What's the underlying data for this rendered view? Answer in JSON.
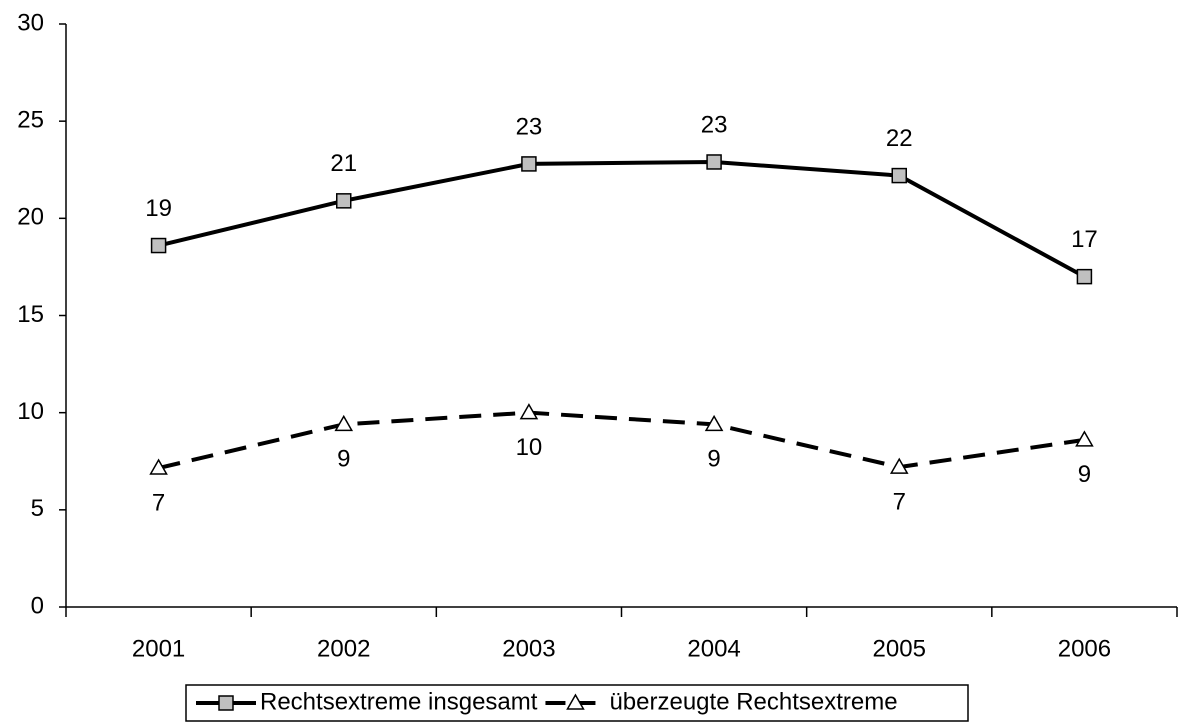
{
  "chart_data": {
    "type": "line",
    "categories": [
      "2001",
      "2002",
      "2003",
      "2004",
      "2005",
      "2006"
    ],
    "series": [
      {
        "name": "Rechtsextreme insgesamt",
        "color": "#000000",
        "line_style": "solid",
        "marker": "square",
        "marker_color": "#c0c0c0",
        "values": [
          18.6,
          20.9,
          22.8,
          22.9,
          22.2,
          17.0
        ],
        "value_labels": [
          "19",
          "21",
          "23",
          "23",
          "22",
          "17"
        ]
      },
      {
        "name": "überzeugte Rechtsextreme",
        "color": "#000000",
        "line_style": "dashed",
        "marker": "triangle",
        "marker_color": "#ffffff",
        "values": [
          7.15,
          9.4,
          10.0,
          9.4,
          7.2,
          8.6
        ],
        "value_labels": [
          "7",
          "9",
          "10",
          "9",
          "7",
          "9"
        ]
      }
    ],
    "ylim": [
      0,
      30
    ],
    "yticks": [
      0,
      5,
      10,
      15,
      20,
      25,
      30
    ],
    "grid": false,
    "legend": "bottom"
  }
}
